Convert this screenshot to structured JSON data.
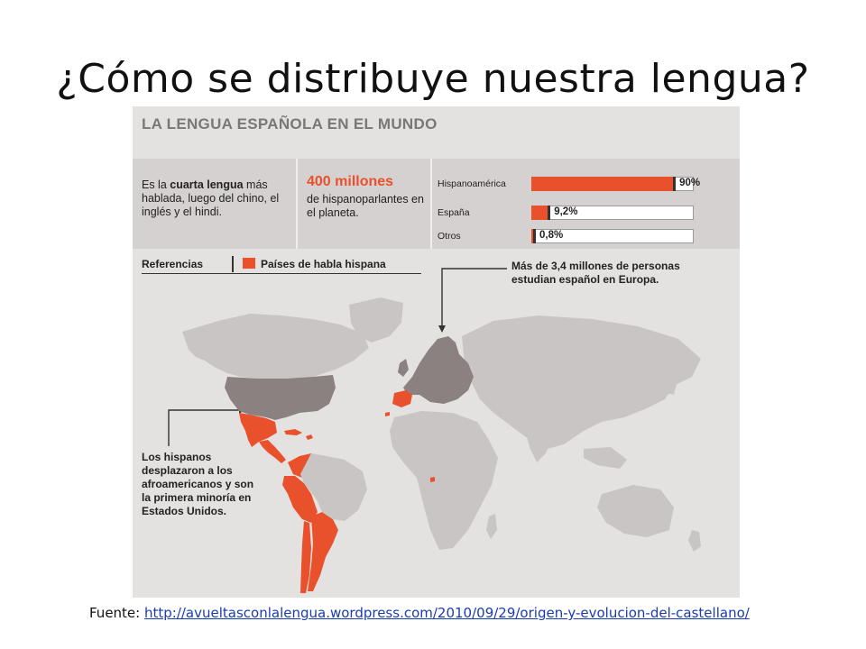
{
  "slide": {
    "title": "¿Cómo se distribuye nuestra lengua?"
  },
  "infographic": {
    "title": "LA LENGUA ESPAÑOLA EN EL MUNDO",
    "col1": {
      "pre": "Es la ",
      "bold": "cuarta lengua",
      "rest": "más hablada, luego del chino, el inglés y el hindi."
    },
    "col2": {
      "big": "400 millones",
      "sub": "de hispanoparlantes en el planeta."
    },
    "bars": [
      {
        "label": "Hispanoamérica",
        "value_text": "90%",
        "value": 90
      },
      {
        "label": "España",
        "value_text": "9,2%",
        "value": 9.2
      },
      {
        "label": "Otros",
        "value_text": "0,8%",
        "value": 0.8
      }
    ],
    "legend": {
      "heading": "Referencias",
      "item": "Países de habla hispana"
    },
    "callout_europe": "Más de 3,4 millones de personas estudian español en Europa.",
    "callout_usa": "Los hispanos desplazaron a los afroamericanos y son la primera minoría en Estados Unidos.",
    "colors": {
      "hispanic": "#e8512c",
      "highlight": "#8a8180",
      "land": "#c9c5c4",
      "ocean": "#e4e2e1"
    }
  },
  "footer": {
    "prefix": "Fuente: ",
    "link": "http://avueltasconlalengua.wordpress.com/2010/09/29/origen-y-evolucion-del-castellano/"
  }
}
